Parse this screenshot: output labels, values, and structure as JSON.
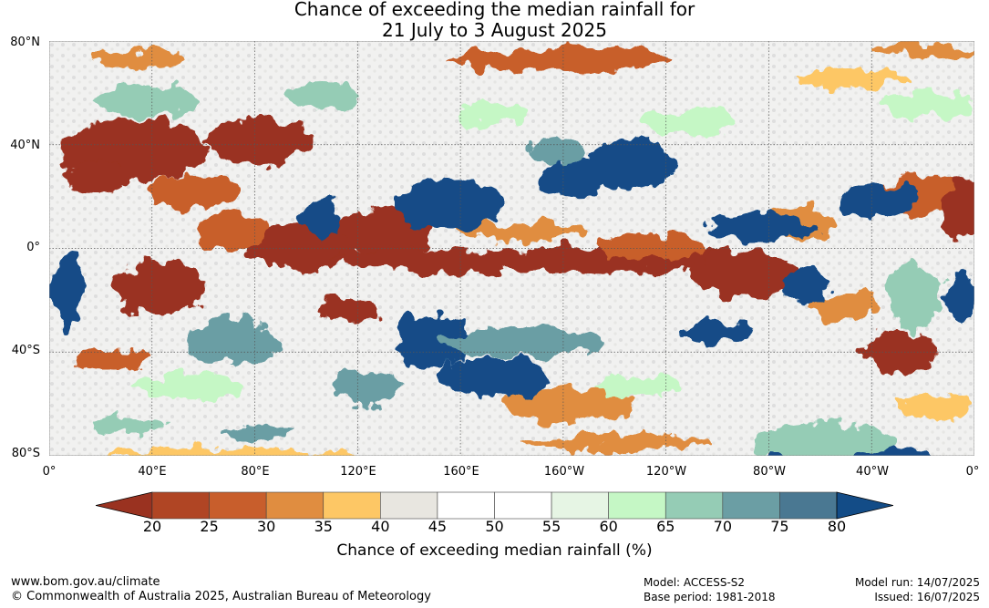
{
  "title": {
    "line1": "Chance of exceeding the median rainfall for",
    "line2": "21 July to 3 August 2025"
  },
  "map": {
    "lat_labels": [
      "80°N",
      "40°N",
      "0°",
      "40°S",
      "80°S"
    ],
    "lat_values": [
      80,
      40,
      0,
      -40,
      -80
    ],
    "lon_labels": [
      "0°",
      "40°E",
      "80°E",
      "120°E",
      "160°E",
      "160°W",
      "120°W",
      "80°W",
      "40°W",
      "0°"
    ],
    "lon_values": [
      0,
      40,
      80,
      120,
      160,
      200,
      240,
      280,
      320,
      360
    ],
    "lat_range": [
      -80,
      80
    ],
    "lon_range": [
      0,
      360
    ]
  },
  "colorbar": {
    "ticks": [
      "20",
      "25",
      "30",
      "35",
      "40",
      "45",
      "50",
      "55",
      "60",
      "65",
      "70",
      "75",
      "80"
    ],
    "colors": [
      "#9a3220",
      "#b04524",
      "#c85e2c",
      "#e08d40",
      "#fdc765",
      "#e8e6e0",
      "#ffffff",
      "#ffffff",
      "#e6f5e4",
      "#c5f7c5",
      "#95ccb5",
      "#6b9ea4",
      "#4a7892"
    ],
    "under_color": "#9a3220",
    "over_color": "#134c87",
    "label": "Chance of exceeding median rainfall (%)"
  },
  "footer": {
    "website": "www.bom.gov.au/climate",
    "copyright": "© Commonwealth of Australia 2025, Australian Bureau of Meteorology",
    "model": "Model: ACCESS-S2",
    "base_period": "Base period: 1981-2018",
    "model_run": "Model run: 14/07/2025",
    "issued": "Issued: 16/07/2025"
  }
}
